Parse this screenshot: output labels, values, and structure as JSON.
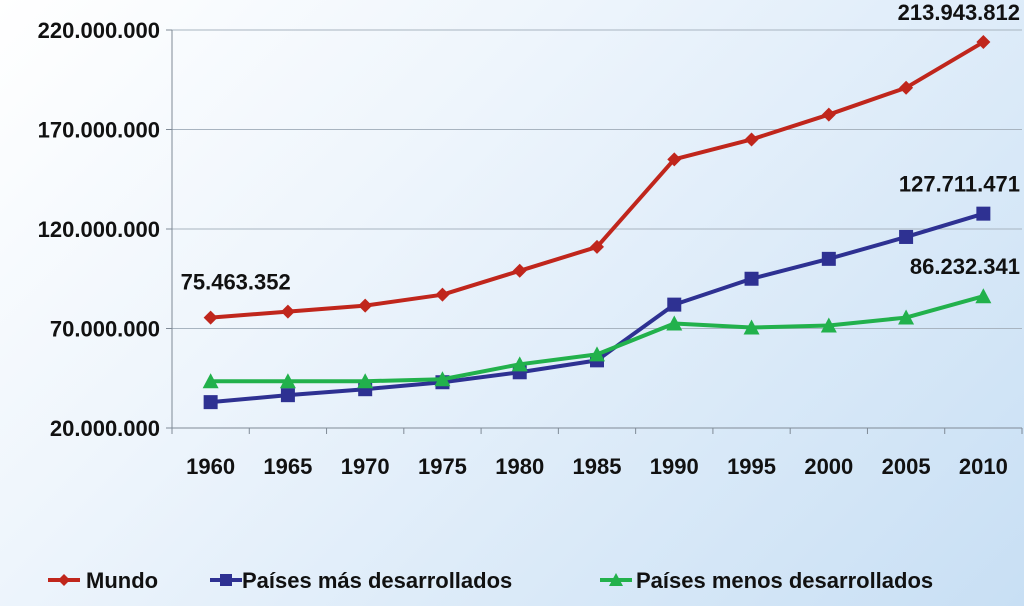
{
  "chart_data": {
    "type": "line",
    "categories": [
      "1960",
      "1965",
      "1970",
      "1975",
      "1980",
      "1985",
      "1990",
      "1995",
      "2000",
      "2005",
      "2010"
    ],
    "ylim": [
      20000000,
      220000000
    ],
    "yticks": [
      20000000,
      70000000,
      120000000,
      170000000,
      220000000
    ],
    "ytick_labels": [
      "20.000.000",
      "70.000.000",
      "120.000.000",
      "170.000.000",
      "220.000.000"
    ],
    "grid": true,
    "legend_position": "bottom",
    "series": [
      {
        "name": "Mundo",
        "color": "#c0261c",
        "marker": "diamond",
        "values": [
          75463352,
          78500000,
          81500000,
          87000000,
          99000000,
          111000000,
          155000000,
          165000000,
          177500000,
          191000000,
          213943812
        ]
      },
      {
        "name": "Países más desarrollados",
        "color": "#2e3192",
        "marker": "square",
        "values": [
          33000000,
          36500000,
          39500000,
          43000000,
          48000000,
          54000000,
          82000000,
          95000000,
          105000000,
          116000000,
          127711471
        ]
      },
      {
        "name": "Países menos desarrollados",
        "color": "#22b14c",
        "marker": "triangle",
        "values": [
          43500000,
          43500000,
          43500000,
          44500000,
          52000000,
          57000000,
          72500000,
          70500000,
          71500000,
          75500000,
          86232341
        ]
      }
    ],
    "annotations": [
      {
        "series": 0,
        "index": 0,
        "text": "75.463.352"
      },
      {
        "series": 0,
        "index": 10,
        "text": "213.943.812"
      },
      {
        "series": 1,
        "index": 10,
        "text": "127.711.471"
      },
      {
        "series": 2,
        "index": 10,
        "text": "86.232.341"
      }
    ]
  }
}
